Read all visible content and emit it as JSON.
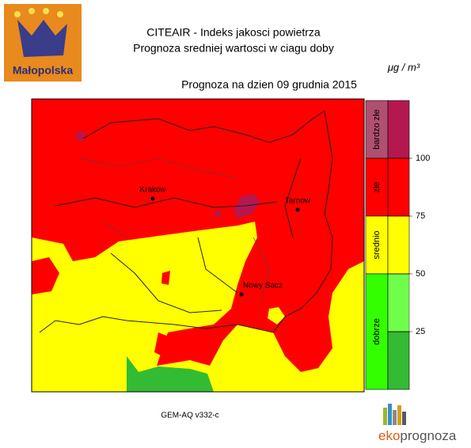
{
  "logo": {
    "text": "Małopolska"
  },
  "header": {
    "title": "CITEAIR - Indeks jakosci powietrza",
    "subtitle": "Prognoza sredniej wartosci w ciagu doby",
    "unit": "μg / m³",
    "date_line": "Prognoza na dzien  09 grudnia 2015"
  },
  "cities": [
    {
      "label": "Krakow"
    },
    {
      "label": "Tarnow"
    },
    {
      "label": "Nowy Sacz"
    }
  ],
  "legend": {
    "range": [
      0,
      125
    ],
    "bands": [
      {
        "label": "bardzo złe",
        "from": 100,
        "to": 125,
        "color": "#b05070",
        "shade": "#b5174f"
      },
      {
        "label": "złe",
        "from": 75,
        "to": 100,
        "color": "#ff0000",
        "shade": "#ff0000"
      },
      {
        "label": "srednio",
        "from": 50,
        "to": 75,
        "color": "#ffff00",
        "shade": "#ffff00"
      },
      {
        "label": "dobrze",
        "from": 0,
        "to": 50,
        "color": "#33ff00",
        "shade": "#33bb33"
      }
    ],
    "ticks": [
      25,
      50,
      75,
      100
    ]
  },
  "footer": {
    "model": "GEM-AQ v332-c",
    "brand_prefix": "eko",
    "brand_suffix": "prognoza"
  }
}
